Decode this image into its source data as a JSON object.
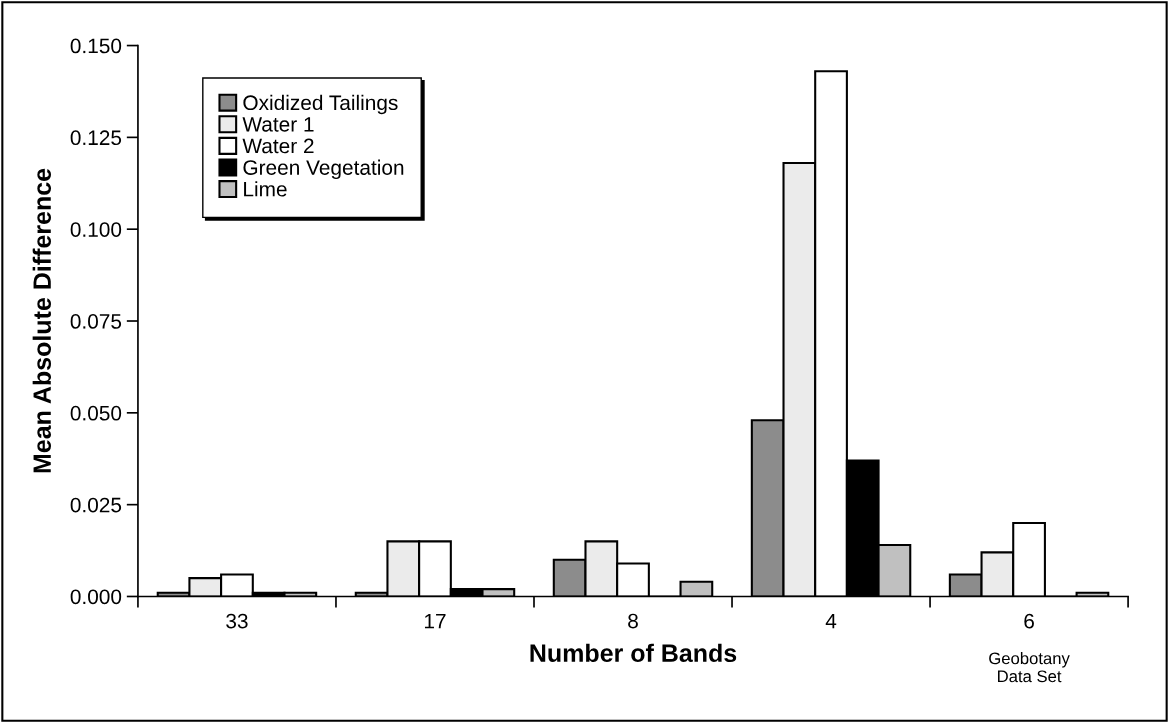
{
  "chart_data": {
    "type": "bar",
    "xlabel": "Number of Bands",
    "ylabel": "Mean Absolute Difference",
    "categories": [
      "33",
      "17",
      "8",
      "4",
      "6"
    ],
    "series": [
      {
        "name": "Oxidized Tailings",
        "color": "#8c8c8c",
        "values": [
          0.001,
          0.001,
          0.01,
          0.048,
          0.006
        ]
      },
      {
        "name": "Water 1",
        "color": "#ebebeb",
        "values": [
          0.005,
          0.015,
          0.015,
          0.118,
          0.012
        ]
      },
      {
        "name": "Water 2",
        "color": "#ffffff",
        "values": [
          0.006,
          0.015,
          0.009,
          0.143,
          0.02
        ]
      },
      {
        "name": "Green Vegetation",
        "color": "#000000",
        "values": [
          0.001,
          0.002,
          0,
          0.037,
          0
        ]
      },
      {
        "name": "Lime",
        "color": "#c0c0c0",
        "values": [
          0.001,
          0.002,
          0.004,
          0.014,
          0.001
        ]
      }
    ],
    "ylim": [
      0,
      0.15
    ],
    "yticks": [
      {
        "value": 0,
        "label": "0.000"
      },
      {
        "value": 0.025,
        "label": "0.025"
      },
      {
        "value": 0.05,
        "label": "0.050"
      },
      {
        "value": 0.075,
        "label": "0.075"
      },
      {
        "value": 0.1,
        "label": "0.100"
      },
      {
        "value": 0.125,
        "label": "0.125"
      },
      {
        "value": 0.15,
        "label": "0.150"
      }
    ],
    "annotations": [
      "Geobotany\nData Set"
    ],
    "grid": false,
    "legend": "top left"
  }
}
